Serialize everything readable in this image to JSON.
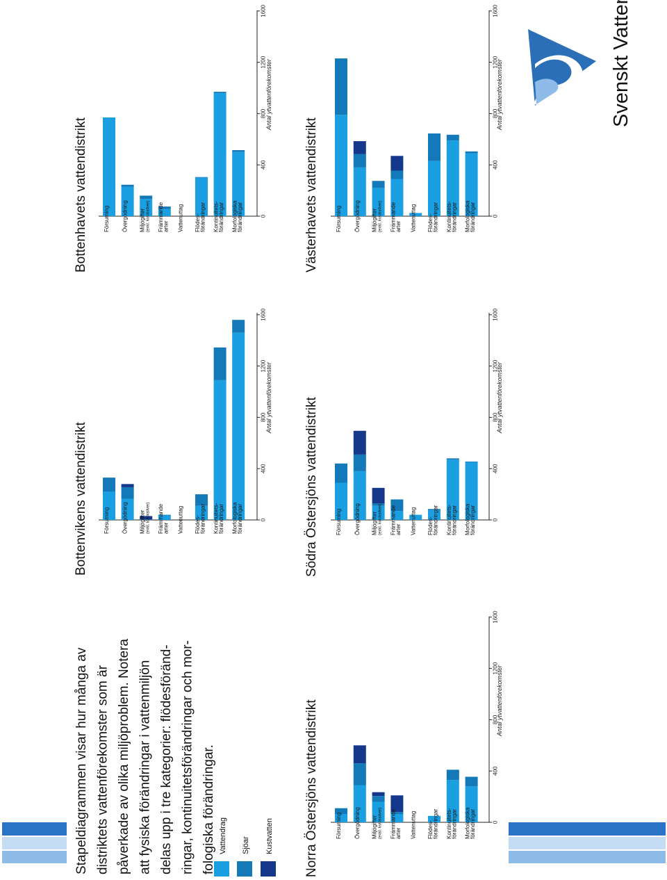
{
  "logo": {
    "text": "Svenskt Vatten"
  },
  "intro": {
    "lines": [
      "Stapeldiagrammen visar hur många av",
      "distriktets vattenförekomster som är",
      "påverkade av olika miljöproblem. Notera",
      "att fysiska förändringar i vattenmiljön",
      "delas upp i tre kategorier: flödesföränd-",
      "ringar, kontinuitetsförändringar och mor-",
      "fologiska förändringar."
    ]
  },
  "legend": [
    {
      "label": "Vattendrag",
      "color": "#1aa0e2"
    },
    {
      "label": "Sjöar",
      "color": "#1479b8"
    },
    {
      "label": "Kustvatten",
      "color": "#16388c"
    }
  ],
  "colors": {
    "vattendrag": "#1aa0e2",
    "sjoar": "#1479b8",
    "kustvatten": "#16388c",
    "stripe_dark": "#2a74c6",
    "stripe_light": "#c4dcf4",
    "stripe_mid": "#8fbbe8"
  },
  "chart_data": [
    {
      "type": "bar",
      "stacked": true,
      "title": "Bottenvikens vattendistrikt",
      "categories": [
        [
          "Försurning"
        ],
        [
          "Övergödning"
        ],
        [
          "Miljögifter",
          "(exkl. kvicksilver)"
        ],
        [
          "Främmande",
          "arter"
        ],
        [
          "Vattenuttag"
        ],
        [
          "Flödes-",
          "förändringar"
        ],
        [
          "Kontinuitets-",
          "förändringar"
        ],
        [
          "Morfologiska",
          "förändringar"
        ]
      ],
      "series": [
        {
          "name": "Vattendrag",
          "values": [
            220,
            165,
            0,
            35,
            0,
            110,
            1090,
            1460
          ]
        },
        {
          "name": "Sjöar",
          "values": [
            110,
            90,
            5,
            5,
            0,
            90,
            255,
            100
          ]
        },
        {
          "name": "Kustvatten",
          "values": [
            0,
            25,
            25,
            0,
            0,
            0,
            0,
            0
          ]
        }
      ],
      "ticks": [
        0,
        400,
        800,
        1200,
        1600
      ],
      "xlabel": "Antal ytvattenförekomster",
      "xlim": [
        0,
        1600
      ]
    },
    {
      "type": "bar",
      "stacked": true,
      "title": "Bottenhavets vattendistrikt",
      "categories": [
        [
          "Försurning"
        ],
        [
          "Övergödning"
        ],
        [
          "Miljögifter",
          "(exkl. kvicksilver)"
        ],
        [
          "Främmande",
          "arter"
        ],
        [
          "Vattenuttag"
        ],
        [
          "Flödes-",
          "förändringar"
        ],
        [
          "Kontinuitets-",
          "förändringar"
        ],
        [
          "Morfologiska",
          "förändringar"
        ]
      ],
      "series": [
        {
          "name": "Vattendrag",
          "values": [
            770,
            230,
            135,
            55,
            0,
            300,
            960,
            500
          ]
        },
        {
          "name": "Sjöar",
          "values": [
            0,
            15,
            25,
            20,
            0,
            5,
            10,
            15
          ]
        },
        {
          "name": "Kustvatten",
          "values": [
            0,
            0,
            0,
            0,
            0,
            0,
            0,
            0
          ]
        }
      ],
      "ticks": [
        0,
        400,
        800,
        1200,
        1600
      ],
      "xlabel": "Antal ytvattenförekomster",
      "xlim": [
        0,
        1600
      ]
    },
    {
      "type": "bar",
      "stacked": true,
      "title": "Norra Östersjöns vattendistrikt",
      "categories": [
        [
          "Försurning"
        ],
        [
          "Övergödning"
        ],
        [
          "Miljögifter",
          "(exkl. kvicksilver)"
        ],
        [
          "Främmande",
          "arter"
        ],
        [
          "Vattenuttag"
        ],
        [
          "Flödes-",
          "förändringar"
        ],
        [
          "Kontinuitets-",
          "förändringar"
        ],
        [
          "Morfologiska",
          "förändringar"
        ]
      ],
      "series": [
        {
          "name": "Vattendrag",
          "values": [
            65,
            290,
            160,
            65,
            0,
            50,
            330,
            280
          ]
        },
        {
          "name": "Sjöar",
          "values": [
            45,
            170,
            45,
            15,
            0,
            0,
            80,
            75
          ]
        },
        {
          "name": "Kustvatten",
          "values": [
            0,
            140,
            30,
            130,
            0,
            0,
            0,
            0
          ]
        }
      ],
      "ticks": [
        0,
        400,
        800,
        1200,
        1600
      ],
      "xlabel": "Antal ytvattenförekomster",
      "xlim": [
        0,
        1600
      ]
    },
    {
      "type": "bar",
      "stacked": true,
      "title": "Södra Östersjöns vattendistrikt",
      "categories": [
        [
          "Försurning"
        ],
        [
          "Övergödning"
        ],
        [
          "Miljögifter",
          "(exkl. kvicksilver)"
        ],
        [
          "Främmande",
          "arter"
        ],
        [
          "Vattenuttag"
        ],
        [
          "Flödes-",
          "förändringar"
        ],
        [
          "Kontinuitets-",
          "förändringar"
        ],
        [
          "Morfologiska",
          "förändringar"
        ]
      ],
      "series": [
        {
          "name": "Vattendrag",
          "values": [
            290,
            380,
            110,
            70,
            40,
            75,
            470,
            450
          ]
        },
        {
          "name": "Sjöar",
          "values": [
            150,
            130,
            20,
            90,
            0,
            10,
            10,
            5
          ]
        },
        {
          "name": "Kustvatten",
          "values": [
            0,
            185,
            120,
            0,
            0,
            0,
            0,
            0
          ]
        }
      ],
      "ticks": [
        0,
        400,
        800,
        1200,
        1600
      ],
      "xlabel": "Antal ytvattenförekomster",
      "xlim": [
        0,
        1600
      ]
    },
    {
      "type": "bar",
      "stacked": true,
      "title": "Västerhavets vattendistrikt",
      "categories": [
        [
          "Försurning"
        ],
        [
          "Övergödning"
        ],
        [
          "Miljögifter",
          "(exkl. kvicksilver)"
        ],
        [
          "Främmande",
          "arter"
        ],
        [
          "Vattenuttag"
        ],
        [
          "Flödes-",
          "förändringar"
        ],
        [
          "Kontinuitets-",
          "förändringar"
        ],
        [
          "Morfologiska",
          "förändringar"
        ]
      ],
      "series": [
        {
          "name": "Vattendrag",
          "values": [
            790,
            380,
            220,
            290,
            25,
            430,
            590,
            490
          ]
        },
        {
          "name": "Sjöar",
          "values": [
            440,
            105,
            55,
            65,
            0,
            215,
            45,
            15
          ]
        },
        {
          "name": "Kustvatten",
          "values": [
            0,
            100,
            0,
            115,
            0,
            0,
            0,
            0
          ]
        }
      ],
      "ticks": [
        0,
        400,
        800,
        1200,
        1600
      ],
      "xlabel": "Antal ytvattenförekomster",
      "xlim": [
        0,
        1600
      ]
    }
  ]
}
